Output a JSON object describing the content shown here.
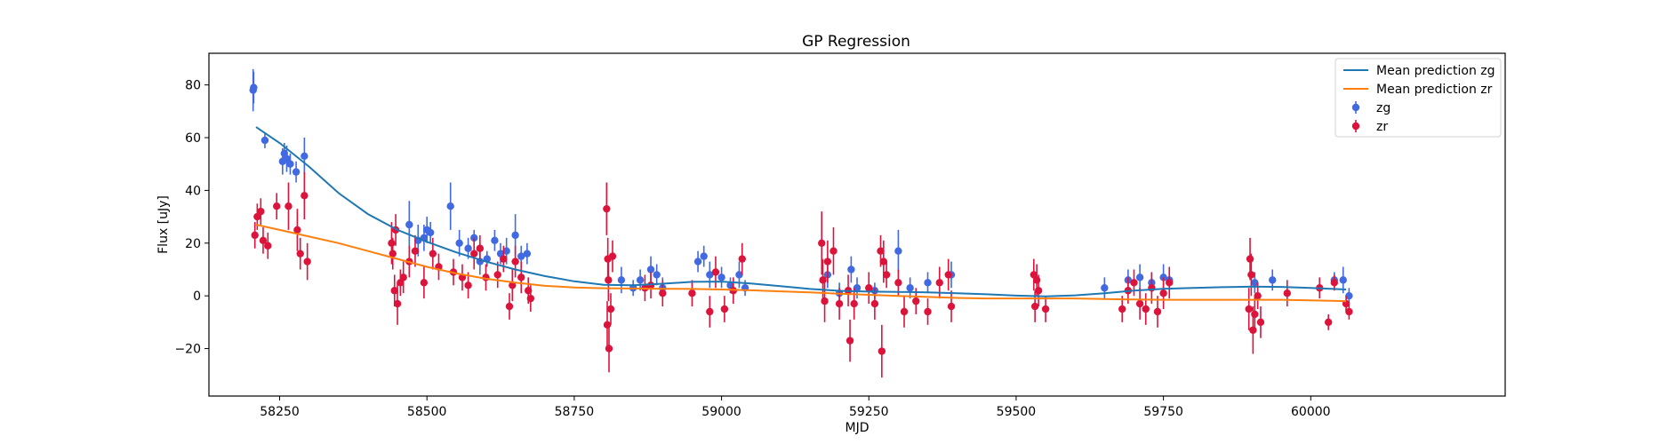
{
  "chart_data": {
    "type": "scatter",
    "title": "GP Regression",
    "xlabel": "MJD",
    "ylabel": "Flux [uJy]",
    "xlim": [
      58130,
      60330
    ],
    "ylim": [
      -38,
      92
    ],
    "xticks": [
      58250,
      58500,
      58750,
      59000,
      59250,
      59500,
      59750,
      60000
    ],
    "yticks": [
      -20,
      0,
      20,
      40,
      60,
      80
    ],
    "grid": false,
    "legend_position": "top-right",
    "series": [
      {
        "name": "Mean prediction zg",
        "kind": "line",
        "color": "#1f77b4",
        "x": [
          58210,
          58250,
          58300,
          58350,
          58400,
          58450,
          58500,
          58550,
          58600,
          58650,
          58700,
          58750,
          58800,
          58850,
          58900,
          58950,
          59000,
          59050,
          59100,
          59150,
          59200,
          59250,
          59300,
          59350,
          59400,
          59450,
          59500,
          59550,
          59600,
          59650,
          59700,
          59750,
          59800,
          59850,
          59900,
          59950,
          60000,
          60060
        ],
        "y": [
          64,
          58,
          49,
          39,
          31,
          25,
          20.5,
          16.5,
          13,
          10,
          7.5,
          5.5,
          4.2,
          4.0,
          4.6,
          5.3,
          5.4,
          4.7,
          3.7,
          2.6,
          1.9,
          1.6,
          1.5,
          1.3,
          1.0,
          0.6,
          0.1,
          -0.2,
          0.2,
          1.0,
          2.0,
          2.7,
          3.0,
          3.3,
          3.5,
          3.4,
          3.0,
          2.4
        ]
      },
      {
        "name": "Mean prediction zr",
        "kind": "line",
        "color": "#ff7f0e",
        "x": [
          58210,
          58250,
          58300,
          58350,
          58400,
          58450,
          58500,
          58550,
          58600,
          58650,
          58700,
          58750,
          58800,
          58850,
          58900,
          58950,
          59000,
          59050,
          59100,
          59150,
          59200,
          59250,
          59300,
          59350,
          59400,
          59450,
          59500,
          59550,
          59600,
          59650,
          59700,
          59750,
          59800,
          59850,
          59900,
          59950,
          60000,
          60060
        ],
        "y": [
          27,
          25,
          22.5,
          20,
          17,
          14,
          11,
          8.5,
          6.5,
          5,
          3.8,
          3.2,
          2.9,
          2.8,
          2.7,
          2.6,
          2.4,
          2.1,
          1.7,
          1.3,
          0.8,
          0.4,
          0,
          -0.4,
          -0.8,
          -1.0,
          -1.0,
          -1.0,
          -1.0,
          -1.2,
          -1.4,
          -1.5,
          -1.5,
          -1.5,
          -1.5,
          -1.5,
          -1.7,
          -2.0
        ]
      },
      {
        "name": "zg",
        "kind": "errorbar",
        "color": "#4169e1",
        "points": [
          [
            58205,
            78,
            8
          ],
          [
            58206,
            79,
            6
          ],
          [
            58225,
            59,
            3
          ],
          [
            58255,
            51,
            5
          ],
          [
            58258,
            54,
            4
          ],
          [
            58262,
            52,
            5
          ],
          [
            58268,
            50,
            4
          ],
          [
            58278,
            47,
            4
          ],
          [
            58292,
            53,
            7
          ],
          [
            58470,
            27,
            9
          ],
          [
            58485,
            21,
            6
          ],
          [
            58495,
            22,
            5
          ],
          [
            58500,
            25,
            5
          ],
          [
            58506,
            24,
            4
          ],
          [
            58540,
            34,
            9
          ],
          [
            58555,
            20,
            5
          ],
          [
            58570,
            18,
            4
          ],
          [
            58580,
            22,
            3
          ],
          [
            58590,
            13,
            5
          ],
          [
            58602,
            14,
            3
          ],
          [
            58615,
            21,
            4
          ],
          [
            58625,
            16,
            4
          ],
          [
            58635,
            17,
            5
          ],
          [
            58650,
            23,
            8
          ],
          [
            58660,
            15,
            4
          ],
          [
            58670,
            16,
            4
          ],
          [
            58830,
            6,
            5
          ],
          [
            58850,
            3,
            3
          ],
          [
            58862,
            6,
            4
          ],
          [
            58880,
            10,
            5
          ],
          [
            58890,
            8,
            4
          ],
          [
            58900,
            3,
            4
          ],
          [
            58960,
            13,
            4
          ],
          [
            58970,
            15,
            4
          ],
          [
            58980,
            8,
            5
          ],
          [
            59000,
            7,
            4
          ],
          [
            59015,
            4,
            3
          ],
          [
            59030,
            8,
            5
          ],
          [
            59040,
            3,
            3
          ],
          [
            59180,
            8,
            5
          ],
          [
            59200,
            1,
            4
          ],
          [
            59220,
            10,
            5
          ],
          [
            59230,
            3,
            4
          ],
          [
            59260,
            2,
            3
          ],
          [
            59300,
            17,
            8
          ],
          [
            59320,
            3,
            4
          ],
          [
            59350,
            5,
            4
          ],
          [
            59390,
            8,
            5
          ],
          [
            59650,
            3,
            4
          ],
          [
            59690,
            6,
            4
          ],
          [
            59710,
            7,
            5
          ],
          [
            59730,
            5,
            4
          ],
          [
            59750,
            7,
            5
          ],
          [
            59760,
            6,
            4
          ],
          [
            59905,
            5,
            4
          ],
          [
            59935,
            6,
            4
          ],
          [
            60040,
            6,
            3
          ],
          [
            60055,
            6,
            5
          ],
          [
            60065,
            0,
            3
          ]
        ]
      },
      {
        "name": "zr",
        "kind": "errorbar",
        "color": "#dc143c",
        "points": [
          [
            58208,
            23,
            5
          ],
          [
            58212,
            30,
            5
          ],
          [
            58218,
            32,
            5
          ],
          [
            58222,
            21,
            5
          ],
          [
            58230,
            19,
            5
          ],
          [
            58245,
            34,
            5
          ],
          [
            58265,
            34,
            9
          ],
          [
            58280,
            25,
            8
          ],
          [
            58285,
            16,
            6
          ],
          [
            58292,
            38,
            9
          ],
          [
            58297,
            13,
            7
          ],
          [
            58440,
            20,
            8
          ],
          [
            58442,
            16,
            6
          ],
          [
            58445,
            2,
            6
          ],
          [
            58447,
            25,
            6
          ],
          [
            58450,
            -3,
            8
          ],
          [
            58455,
            5,
            5
          ],
          [
            58460,
            7,
            6
          ],
          [
            58470,
            13,
            6
          ],
          [
            58480,
            17,
            6
          ],
          [
            58495,
            5,
            6
          ],
          [
            58510,
            16,
            6
          ],
          [
            58520,
            11,
            5
          ],
          [
            58545,
            9,
            5
          ],
          [
            58560,
            7,
            5
          ],
          [
            58570,
            4,
            5
          ],
          [
            58580,
            16,
            6
          ],
          [
            58590,
            18,
            5
          ],
          [
            58600,
            7,
            5
          ],
          [
            58620,
            8,
            5
          ],
          [
            58630,
            14,
            5
          ],
          [
            58640,
            -4,
            5
          ],
          [
            58645,
            4,
            6
          ],
          [
            58650,
            13,
            6
          ],
          [
            58660,
            7,
            6
          ],
          [
            58672,
            2,
            5
          ],
          [
            58676,
            -1,
            5
          ],
          [
            58805,
            33,
            10
          ],
          [
            58806,
            -11,
            9
          ],
          [
            58807,
            14,
            8
          ],
          [
            58808,
            6,
            8
          ],
          [
            58809,
            -20,
            9
          ],
          [
            58812,
            -5,
            6
          ],
          [
            58815,
            15,
            6
          ],
          [
            58870,
            3,
            5
          ],
          [
            58880,
            4,
            5
          ],
          [
            58900,
            1,
            5
          ],
          [
            58950,
            1,
            5
          ],
          [
            58980,
            -6,
            6
          ],
          [
            58990,
            9,
            6
          ],
          [
            59005,
            -5,
            5
          ],
          [
            59020,
            2,
            5
          ],
          [
            59035,
            14,
            6
          ],
          [
            59170,
            20,
            12
          ],
          [
            59172,
            6,
            8
          ],
          [
            59175,
            -2,
            8
          ],
          [
            59180,
            13,
            8
          ],
          [
            59190,
            17,
            9
          ],
          [
            59200,
            -3,
            6
          ],
          [
            59215,
            2,
            6
          ],
          [
            59218,
            -17,
            8
          ],
          [
            59225,
            -3,
            6
          ],
          [
            59250,
            3,
            6
          ],
          [
            59260,
            -3,
            6
          ],
          [
            59270,
            17,
            6
          ],
          [
            59272,
            -21,
            10
          ],
          [
            59275,
            13,
            8
          ],
          [
            59280,
            8,
            5
          ],
          [
            59300,
            5,
            5
          ],
          [
            59310,
            -6,
            6
          ],
          [
            59330,
            -2,
            5
          ],
          [
            59350,
            -6,
            5
          ],
          [
            59370,
            5,
            6
          ],
          [
            59385,
            8,
            6
          ],
          [
            59390,
            -4,
            6
          ],
          [
            59530,
            8,
            6
          ],
          [
            59532,
            -4,
            6
          ],
          [
            59535,
            6,
            6
          ],
          [
            59538,
            2,
            6
          ],
          [
            59550,
            -5,
            5
          ],
          [
            59680,
            -5,
            5
          ],
          [
            59690,
            2,
            5
          ],
          [
            59700,
            5,
            5
          ],
          [
            59710,
            -3,
            6
          ],
          [
            59720,
            -5,
            6
          ],
          [
            59730,
            3,
            6
          ],
          [
            59740,
            -6,
            6
          ],
          [
            59750,
            1,
            6
          ],
          [
            59760,
            5,
            6
          ],
          [
            59895,
            -5,
            8
          ],
          [
            59897,
            14,
            8
          ],
          [
            59899,
            8,
            8
          ],
          [
            59902,
            -13,
            9
          ],
          [
            59905,
            -7,
            7
          ],
          [
            59910,
            0,
            5
          ],
          [
            59915,
            -10,
            6
          ],
          [
            59960,
            1,
            5
          ],
          [
            60015,
            3,
            4
          ],
          [
            60030,
            -10,
            3
          ],
          [
            60040,
            5,
            3
          ],
          [
            60060,
            -3,
            3
          ],
          [
            60065,
            -6,
            3
          ]
        ]
      }
    ]
  }
}
